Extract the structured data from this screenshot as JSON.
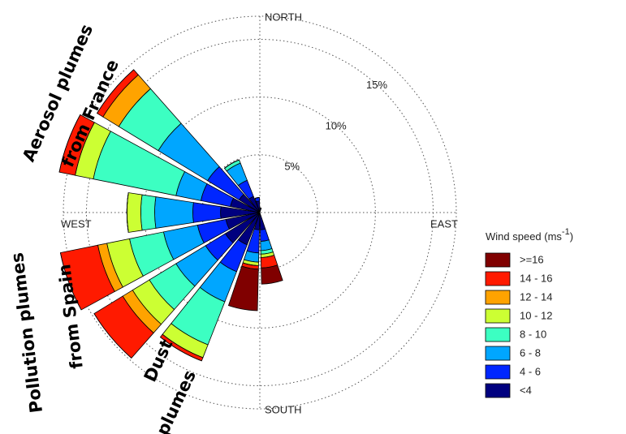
{
  "chart_data": {
    "type": "windrose",
    "x": [
      170,
      190,
      210,
      230,
      250,
      270,
      290,
      310,
      330,
      350,
      10
    ],
    "rlim": [
      0,
      17
    ],
    "rticks": [
      {
        "value": 5,
        "label": "5%"
      },
      {
        "value": 10,
        "label": "10%"
      },
      {
        "value": 15,
        "label": "15%"
      }
    ],
    "directions": [
      "NORTH",
      "EAST",
      "SOUTH",
      "WEST"
    ],
    "legend_title": [
      "Wind speed (ms",
      "-1",
      ")"
    ],
    "annotations": [
      [
        "Aerosol plumes",
        "from France"
      ],
      [
        "Pollution plumes",
        "from Spain"
      ],
      [
        "Dust",
        "plumes"
      ]
    ],
    "series": [
      {
        "name": "<4",
        "color": "#00007f",
        "values": [
          1.5,
          1.5,
          3.0,
          3.5,
          3.0,
          3.4,
          2.6,
          2.1,
          1.5,
          1.0,
          0.4
        ]
      },
      {
        "name": "4 - 6",
        "color": "#0026ff",
        "values": [
          1.0,
          2.0,
          2.5,
          2.0,
          2.5,
          2.4,
          2.6,
          3.2,
          1.5,
          0.3,
          0
        ]
      },
      {
        "name": "6 - 8",
        "color": "#00a6ff",
        "values": [
          0.8,
          0.8,
          2.8,
          3.0,
          3.0,
          3.3,
          2.2,
          5.0,
          1.6,
          0,
          0
        ]
      },
      {
        "name": "8 - 10",
        "color": "#3cffc2",
        "values": [
          0.3,
          0,
          4.0,
          2.7,
          3.0,
          1.2,
          7.3,
          4.0,
          0.3,
          0,
          0
        ]
      },
      {
        "name": "10 - 12",
        "color": "#ccff33",
        "values": [
          0.3,
          0.3,
          1.2,
          1.7,
          2.0,
          1.2,
          1.6,
          0,
          0,
          0,
          0
        ]
      },
      {
        "name": "12 - 14",
        "color": "#ffa300",
        "values": [
          0,
          0,
          0,
          1.0,
          0.8,
          0,
          0,
          1.6,
          0,
          0,
          0
        ]
      },
      {
        "name": "14 - 16",
        "color": "#ff1a00",
        "values": [
          0.9,
          0.3,
          0.3,
          2.9,
          3.3,
          0,
          1.4,
          0.6,
          0,
          0,
          0
        ]
      },
      {
        "name": ">=16",
        "color": "#800000",
        "values": [
          1.4,
          3.6,
          0,
          0,
          0,
          0,
          0,
          0,
          0,
          0,
          0
        ]
      }
    ]
  }
}
